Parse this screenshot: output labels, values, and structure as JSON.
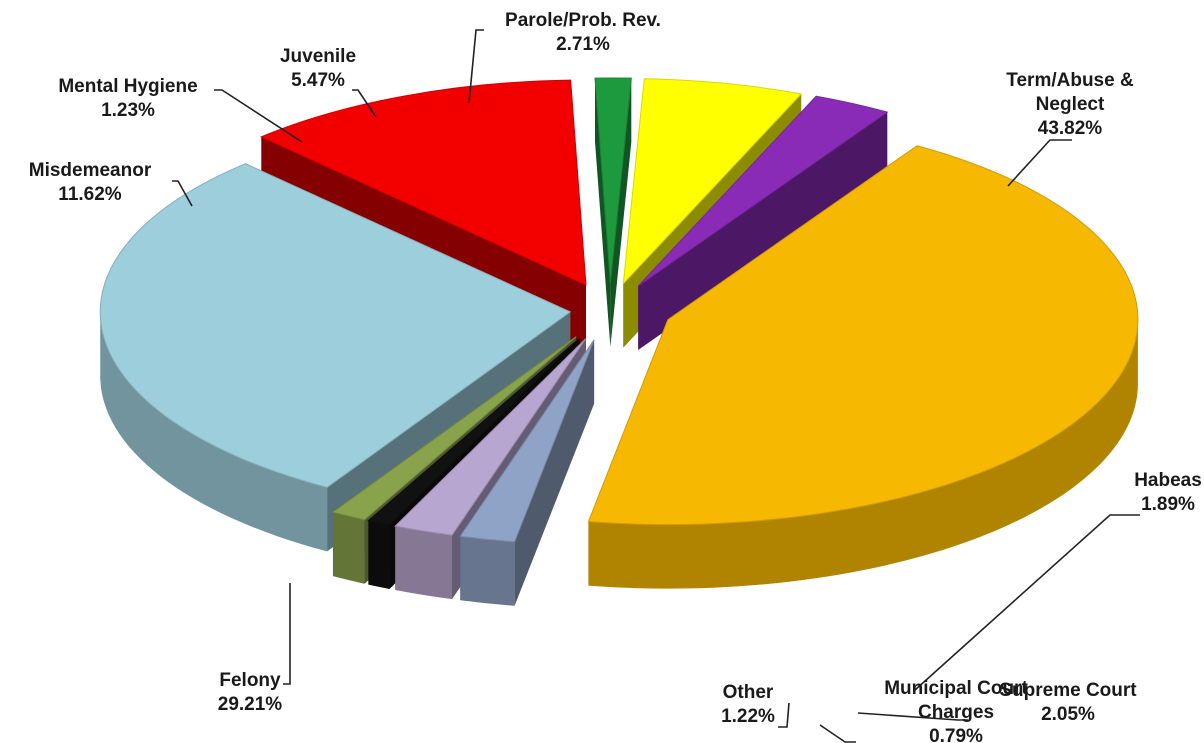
{
  "chart_data": {
    "type": "pie",
    "style": "3d-exploded",
    "slices": [
      {
        "label": "Term/Abuse & Neglect",
        "lines": [
          "Term/Abuse &",
          "Neglect"
        ],
        "value": 43.82,
        "display": "43.82%",
        "color": "#F6B800"
      },
      {
        "label": "Habeas",
        "lines": [
          "Habeas"
        ],
        "value": 1.89,
        "display": "1.89%",
        "color": "#8FA3C7"
      },
      {
        "label": "Supreme Court",
        "lines": [
          "Supreme Court"
        ],
        "value": 2.05,
        "display": "2.05%",
        "color": "#B7A6CF"
      },
      {
        "label": "Municipal Court Charges",
        "lines": [
          "Municipal Court",
          "Charges"
        ],
        "value": 0.79,
        "display": "0.79%",
        "color": "#111111"
      },
      {
        "label": "Other",
        "lines": [
          "Other"
        ],
        "value": 1.22,
        "display": "1.22%",
        "color": "#89A24C"
      },
      {
        "label": "Felony",
        "lines": [
          "Felony"
        ],
        "value": 29.21,
        "display": "29.21%",
        "color": "#9DCEDC"
      },
      {
        "label": "Misdemeanor",
        "lines": [
          "Misdemeanor"
        ],
        "value": 11.62,
        "display": "11.62%",
        "color": "#F20000"
      },
      {
        "label": "Mental Hygiene",
        "lines": [
          "Mental Hygiene"
        ],
        "value": 1.23,
        "display": "1.23%",
        "color": "#1E9A3E"
      },
      {
        "label": "Juvenile",
        "lines": [
          "Juvenile"
        ],
        "value": 5.47,
        "display": "5.47%",
        "color": "#FFFF00"
      },
      {
        "label": "Parole/Prob. Rev.",
        "lines": [
          "Parole/Prob. Rev."
        ],
        "value": 2.71,
        "display": "2.71%",
        "color": "#8A2BB8"
      }
    ]
  }
}
